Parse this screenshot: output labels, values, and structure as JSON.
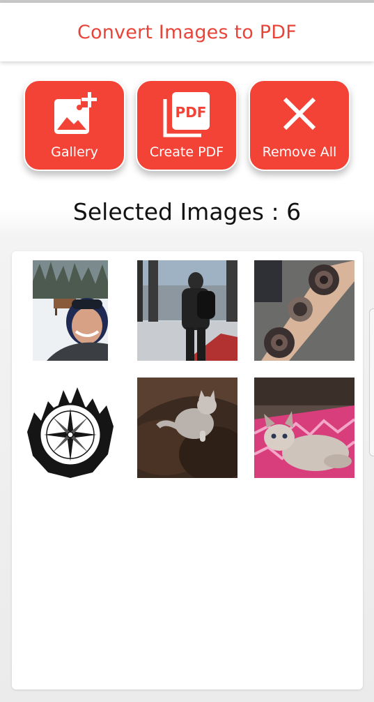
{
  "app": {
    "title": "Convert Images to PDF"
  },
  "actions": {
    "gallery_label": "Gallery",
    "create_pdf_label": "Create PDF",
    "remove_all_label": "Remove All",
    "pdf_icon_text": "PDF"
  },
  "selection": {
    "heading": "Selected Images : 6",
    "images": [
      {
        "name": "selfie-snow"
      },
      {
        "name": "man-at-window"
      },
      {
        "name": "rose-sleeve-tattoo"
      },
      {
        "name": "compass-tattoo-art"
      },
      {
        "name": "cat-on-couch"
      },
      {
        "name": "cat-on-blanket"
      }
    ]
  },
  "colors": {
    "accent": "#f24336",
    "title_red": "#e8453a",
    "heading_text": "#111111"
  },
  "icons": {
    "gallery": "add-image-icon",
    "create_pdf": "pdf-icon",
    "remove_all": "close-icon"
  }
}
